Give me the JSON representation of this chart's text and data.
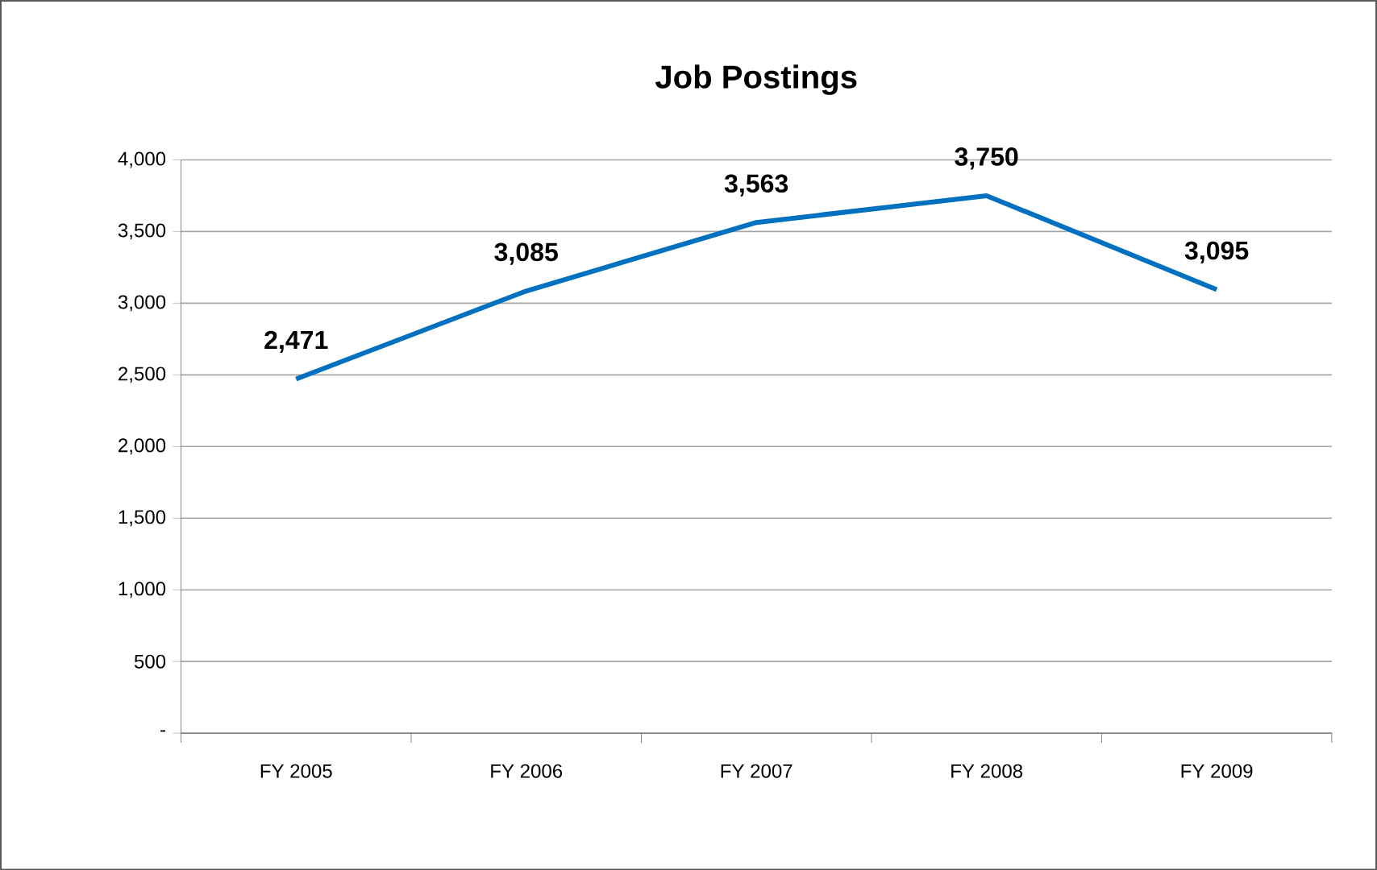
{
  "chart_data": {
    "type": "line",
    "title": "Job Postings",
    "categories": [
      "FY 2005",
      "FY 2006",
      "FY 2007",
      "FY 2008",
      "FY 2009"
    ],
    "values": [
      2471,
      3085,
      3563,
      3750,
      3095
    ],
    "value_labels": [
      "2,471",
      "3,085",
      "3,563",
      "3,750",
      "3,095"
    ],
    "color": "#0070c0",
    "ylim": [
      0,
      4000
    ],
    "yticks": [
      {
        "value": 0,
        "label": "-"
      },
      500,
      {
        "value": 1000,
        "label": "1,000"
      },
      {
        "value": 1500,
        "label": "1,500"
      },
      {
        "value": 2000,
        "label": "2,000"
      },
      {
        "value": 2500,
        "label": "2,500"
      },
      {
        "value": 3000,
        "label": "3,000"
      },
      {
        "value": 3500,
        "label": "3,500"
      },
      {
        "value": 4000,
        "label": "4,000"
      }
    ],
    "grid": "y",
    "marker": "none",
    "line_style": "solid"
  }
}
